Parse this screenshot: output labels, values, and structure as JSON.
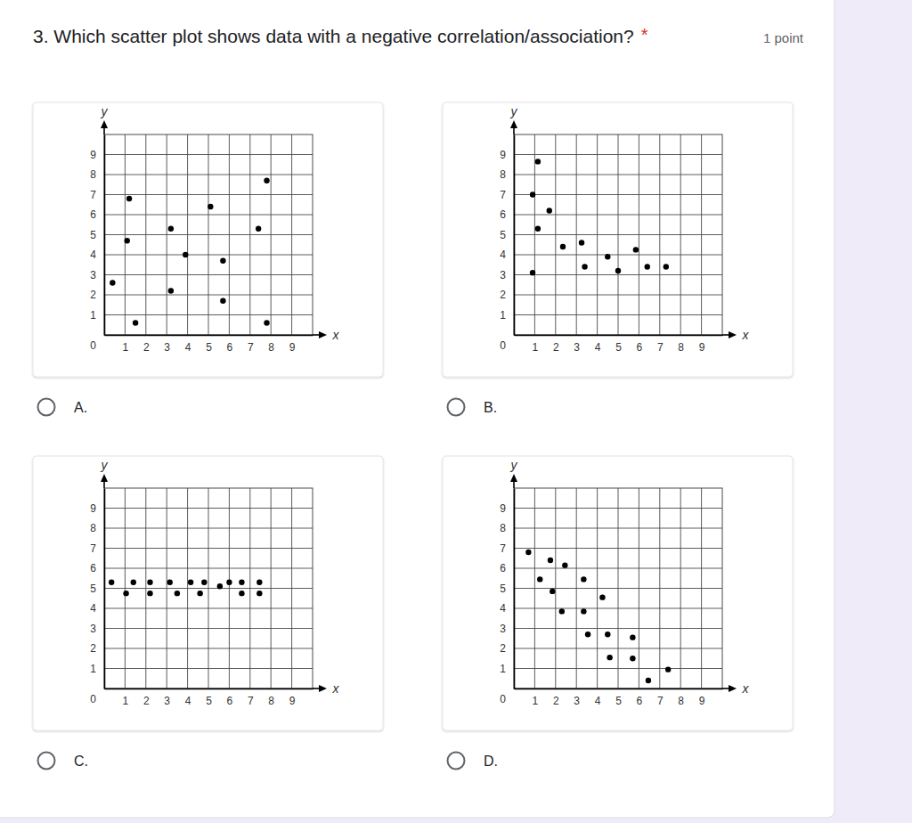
{
  "question": {
    "text": "3. Which scatter plot shows data with a negative correlation/association?",
    "required_mark": "*",
    "points": "1 point"
  },
  "options": [
    "A.",
    "B.",
    "C.",
    "D."
  ],
  "chart_data": [
    {
      "type": "scatter",
      "x_label": "x",
      "y_label": "y",
      "color": "#000000",
      "marker": "circle",
      "grid": true,
      "xlim": [
        0,
        10
      ],
      "ylim": [
        0,
        10
      ],
      "xticks": [
        1,
        2,
        3,
        4,
        5,
        6,
        7,
        8,
        9
      ],
      "yticks": [
        0,
        1,
        2,
        3,
        4,
        5,
        6,
        7,
        8,
        9
      ],
      "x": [
        0.4,
        1.2,
        1.1,
        1.5,
        3.2,
        3.2,
        3.9,
        5.1,
        5.7,
        5.7,
        7.4,
        7.8,
        7.8
      ],
      "values": [
        2.6,
        6.8,
        4.7,
        0.6,
        5.3,
        2.2,
        4.0,
        6.4,
        3.7,
        1.7,
        5.3,
        7.7,
        0.6
      ]
    },
    {
      "type": "scatter",
      "x_label": "x",
      "y_label": "y",
      "color": "#000000",
      "marker": "circle",
      "grid": true,
      "xlim": [
        0,
        10
      ],
      "ylim": [
        0,
        10
      ],
      "xticks": [
        1,
        2,
        3,
        4,
        5,
        6,
        7,
        8,
        9
      ],
      "yticks": [
        0,
        1,
        2,
        3,
        4,
        5,
        6,
        7,
        8,
        9
      ],
      "x": [
        0.9,
        0.9,
        1.15,
        1.15,
        1.7,
        2.35,
        3.25,
        3.4,
        4.5,
        5.0,
        5.85,
        6.4,
        7.3
      ],
      "values": [
        3.1,
        7.0,
        5.3,
        8.65,
        6.2,
        4.4,
        4.6,
        3.4,
        3.9,
        3.2,
        4.25,
        3.4,
        3.4
      ]
    },
    {
      "type": "scatter",
      "x_label": "x",
      "y_label": "y",
      "color": "#000000",
      "marker": "circle",
      "grid": true,
      "xlim": [
        0,
        10
      ],
      "ylim": [
        0,
        10
      ],
      "xticks": [
        1,
        2,
        3,
        4,
        5,
        6,
        7,
        8,
        9
      ],
      "yticks": [
        0,
        1,
        2,
        3,
        4,
        5,
        6,
        7,
        8,
        9
      ],
      "x": [
        0.35,
        1.05,
        1.4,
        2.2,
        2.2,
        3.15,
        3.5,
        4.15,
        4.6,
        4.8,
        5.55,
        6.0,
        6.6,
        6.6,
        7.45,
        7.45
      ],
      "values": [
        5.3,
        4.75,
        5.3,
        5.3,
        4.75,
        5.3,
        4.75,
        5.3,
        4.75,
        5.3,
        5.1,
        5.3,
        5.3,
        4.75,
        5.3,
        4.75
      ]
    },
    {
      "type": "scatter",
      "x_label": "x",
      "y_label": "y",
      "color": "#000000",
      "marker": "circle",
      "grid": true,
      "xlim": [
        0,
        10
      ],
      "ylim": [
        0,
        10
      ],
      "xticks": [
        1,
        2,
        3,
        4,
        5,
        6,
        7,
        8,
        9
      ],
      "yticks": [
        0,
        1,
        2,
        3,
        4,
        5,
        6,
        7,
        8,
        9
      ],
      "x": [
        0.7,
        1.25,
        1.75,
        1.85,
        2.3,
        2.45,
        3.35,
        3.35,
        3.55,
        4.25,
        4.5,
        4.6,
        5.7,
        5.7,
        6.45,
        7.4
      ],
      "values": [
        6.8,
        5.45,
        6.4,
        4.85,
        3.85,
        6.15,
        5.45,
        3.85,
        2.7,
        4.55,
        2.7,
        1.55,
        2.55,
        1.5,
        0.4,
        0.95
      ]
    }
  ]
}
